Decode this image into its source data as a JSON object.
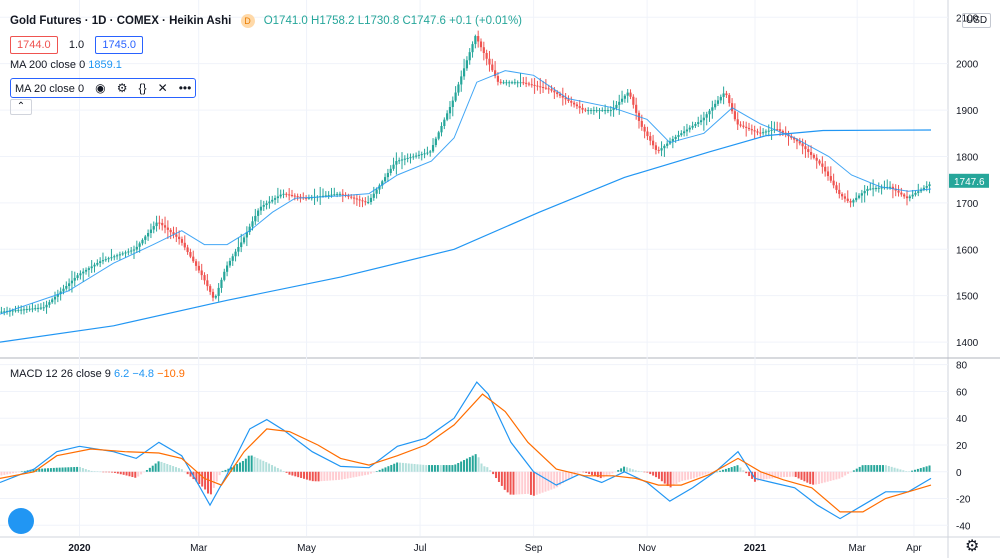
{
  "header": {
    "symbol": "Gold Futures · 1D · COMEX · Heikin Ashi",
    "badge": "D",
    "ohlc": "O1741.0 H1758.2 L1730.8 C1747.6 +0.1 (+0.01%)"
  },
  "trade": {
    "sell": "1744.0",
    "qty": "1.0",
    "buy": "1745.0"
  },
  "indicators": {
    "ma200_label": "MA 200 close 0",
    "ma200_value": "1859.1",
    "ma20_label": "MA 20 close 0",
    "macd_label": "MACD 12 26 close 9",
    "macd_v1": "6.2",
    "macd_v2": "−4.8",
    "macd_v3": "−10.9"
  },
  "currency": "USD",
  "icons": [
    "eye-icon",
    "settings-icon",
    "braces-icon",
    "close-icon",
    "more-icon",
    "chevron-up-icon",
    "tradingview-logo-icon",
    "gear-icon"
  ],
  "colors": {
    "up": "#26a69a",
    "down": "#ef5350",
    "ma": "#2196f3",
    "macd": "#2196f3",
    "signal": "#ff6d00"
  },
  "chart_data": [
    {
      "type": "candlestick",
      "subtype": "heikin-ashi",
      "yticks": [
        1400,
        1500,
        1600,
        1700,
        1800,
        1900,
        2000,
        2100
      ],
      "ylim": [
        1370,
        2120
      ],
      "xticks": [
        "2020",
        "Mar",
        "May",
        "Jul",
        "Sep",
        "Nov",
        "2021",
        "Mar",
        "Apr"
      ],
      "xtick_pos": [
        1.4,
        3.5,
        5.4,
        7.4,
        9.4,
        11.4,
        13.3,
        15.1,
        16.1
      ],
      "xlim": [
        0,
        16.7
      ],
      "price_path": [
        [
          0,
          1465
        ],
        [
          0.8,
          1475
        ],
        [
          1.4,
          1545
        ],
        [
          1.8,
          1575
        ],
        [
          2.4,
          1600
        ],
        [
          2.8,
          1660
        ],
        [
          3.2,
          1620
        ],
        [
          3.6,
          1540
        ],
        [
          3.8,
          1490
        ],
        [
          4.0,
          1560
        ],
        [
          4.3,
          1620
        ],
        [
          4.6,
          1690
        ],
        [
          5.0,
          1720
        ],
        [
          5.4,
          1710
        ],
        [
          6.0,
          1720
        ],
        [
          6.5,
          1700
        ],
        [
          7.0,
          1790
        ],
        [
          7.6,
          1810
        ],
        [
          8.0,
          1920
        ],
        [
          8.4,
          2060
        ],
        [
          8.8,
          1960
        ],
        [
          9.2,
          1960
        ],
        [
          9.7,
          1945
        ],
        [
          10.3,
          1900
        ],
        [
          10.8,
          1900
        ],
        [
          11.1,
          1940
        ],
        [
          11.3,
          1870
        ],
        [
          11.6,
          1810
        ],
        [
          11.9,
          1840
        ],
        [
          12.4,
          1880
        ],
        [
          12.8,
          1940
        ],
        [
          13.0,
          1870
        ],
        [
          13.4,
          1850
        ],
        [
          13.7,
          1860
        ],
        [
          14.1,
          1830
        ],
        [
          14.5,
          1780
        ],
        [
          14.8,
          1720
        ],
        [
          15.0,
          1700
        ],
        [
          15.3,
          1730
        ],
        [
          15.7,
          1735
        ],
        [
          16.0,
          1710
        ],
        [
          16.4,
          1740
        ]
      ],
      "ma20": [
        [
          0,
          1460
        ],
        [
          1.2,
          1510
        ],
        [
          2.0,
          1570
        ],
        [
          2.7,
          1610
        ],
        [
          3.2,
          1640
        ],
        [
          3.6,
          1610
        ],
        [
          4.0,
          1610
        ],
        [
          4.4,
          1640
        ],
        [
          4.8,
          1680
        ],
        [
          5.2,
          1710
        ],
        [
          6.0,
          1715
        ],
        [
          6.5,
          1720
        ],
        [
          7.0,
          1760
        ],
        [
          7.6,
          1790
        ],
        [
          8.0,
          1840
        ],
        [
          8.4,
          1960
        ],
        [
          8.9,
          1985
        ],
        [
          9.4,
          1975
        ],
        [
          10.0,
          1925
        ],
        [
          10.8,
          1905
        ],
        [
          11.4,
          1880
        ],
        [
          11.8,
          1830
        ],
        [
          12.4,
          1850
        ],
        [
          12.9,
          1905
        ],
        [
          13.4,
          1870
        ],
        [
          14.0,
          1840
        ],
        [
          14.6,
          1800
        ],
        [
          15.0,
          1760
        ],
        [
          15.5,
          1735
        ],
        [
          16.0,
          1725
        ],
        [
          16.4,
          1730
        ]
      ],
      "ma200": [
        [
          0,
          1400
        ],
        [
          2.0,
          1435
        ],
        [
          4.0,
          1490
        ],
        [
          6.0,
          1540
        ],
        [
          8.0,
          1600
        ],
        [
          9.5,
          1680
        ],
        [
          11.0,
          1755
        ],
        [
          12.5,
          1810
        ],
        [
          13.5,
          1845
        ],
        [
          14.5,
          1856
        ],
        [
          16.4,
          1857
        ]
      ]
    },
    {
      "type": "macd",
      "yticks": [
        -40,
        -20,
        0,
        20,
        40,
        60,
        80
      ],
      "ylim": [
        -48,
        82
      ],
      "macd": [
        [
          0,
          -8
        ],
        [
          0.6,
          2
        ],
        [
          1.0,
          15
        ],
        [
          1.4,
          19
        ],
        [
          2.0,
          15
        ],
        [
          2.4,
          10
        ],
        [
          2.8,
          22
        ],
        [
          3.2,
          12
        ],
        [
          3.5,
          -10
        ],
        [
          3.7,
          -25
        ],
        [
          4.0,
          -2
        ],
        [
          4.4,
          32
        ],
        [
          4.7,
          39
        ],
        [
          5.0,
          31
        ],
        [
          5.5,
          15
        ],
        [
          6.0,
          4
        ],
        [
          6.5,
          3
        ],
        [
          7.0,
          19
        ],
        [
          7.5,
          25
        ],
        [
          8.0,
          40
        ],
        [
          8.4,
          67
        ],
        [
          8.6,
          58
        ],
        [
          9.0,
          22
        ],
        [
          9.4,
          0
        ],
        [
          9.8,
          -10
        ],
        [
          10.2,
          -2
        ],
        [
          10.6,
          -8
        ],
        [
          11.0,
          0
        ],
        [
          11.4,
          -8
        ],
        [
          11.8,
          -22
        ],
        [
          12.2,
          -12
        ],
        [
          12.6,
          0
        ],
        [
          13.0,
          15
        ],
        [
          13.3,
          -5
        ],
        [
          13.6,
          -8
        ],
        [
          14.0,
          -12
        ],
        [
          14.4,
          -25
        ],
        [
          14.8,
          -35
        ],
        [
          15.2,
          -25
        ],
        [
          15.6,
          -15
        ],
        [
          16.0,
          -15
        ],
        [
          16.4,
          -5
        ]
      ],
      "signal": [
        [
          0,
          -5
        ],
        [
          0.6,
          0
        ],
        [
          1.0,
          12
        ],
        [
          1.6,
          17
        ],
        [
          2.2,
          15
        ],
        [
          2.8,
          14
        ],
        [
          3.2,
          10
        ],
        [
          3.6,
          -5
        ],
        [
          3.9,
          -10
        ],
        [
          4.3,
          15
        ],
        [
          4.7,
          32
        ],
        [
          5.1,
          30
        ],
        [
          5.6,
          20
        ],
        [
          6.0,
          10
        ],
        [
          6.5,
          5
        ],
        [
          7.0,
          12
        ],
        [
          7.5,
          20
        ],
        [
          8.0,
          35
        ],
        [
          8.5,
          58
        ],
        [
          8.9,
          45
        ],
        [
          9.3,
          22
        ],
        [
          9.8,
          2
        ],
        [
          10.3,
          -3
        ],
        [
          10.8,
          -3
        ],
        [
          11.2,
          -5
        ],
        [
          11.6,
          -10
        ],
        [
          12.0,
          -10
        ],
        [
          12.5,
          -2
        ],
        [
          13.0,
          10
        ],
        [
          13.4,
          0
        ],
        [
          13.8,
          -6
        ],
        [
          14.3,
          -12
        ],
        [
          14.8,
          -30
        ],
        [
          15.2,
          -30
        ],
        [
          15.6,
          -20
        ],
        [
          16.0,
          -15
        ],
        [
          16.4,
          -10
        ]
      ]
    }
  ]
}
